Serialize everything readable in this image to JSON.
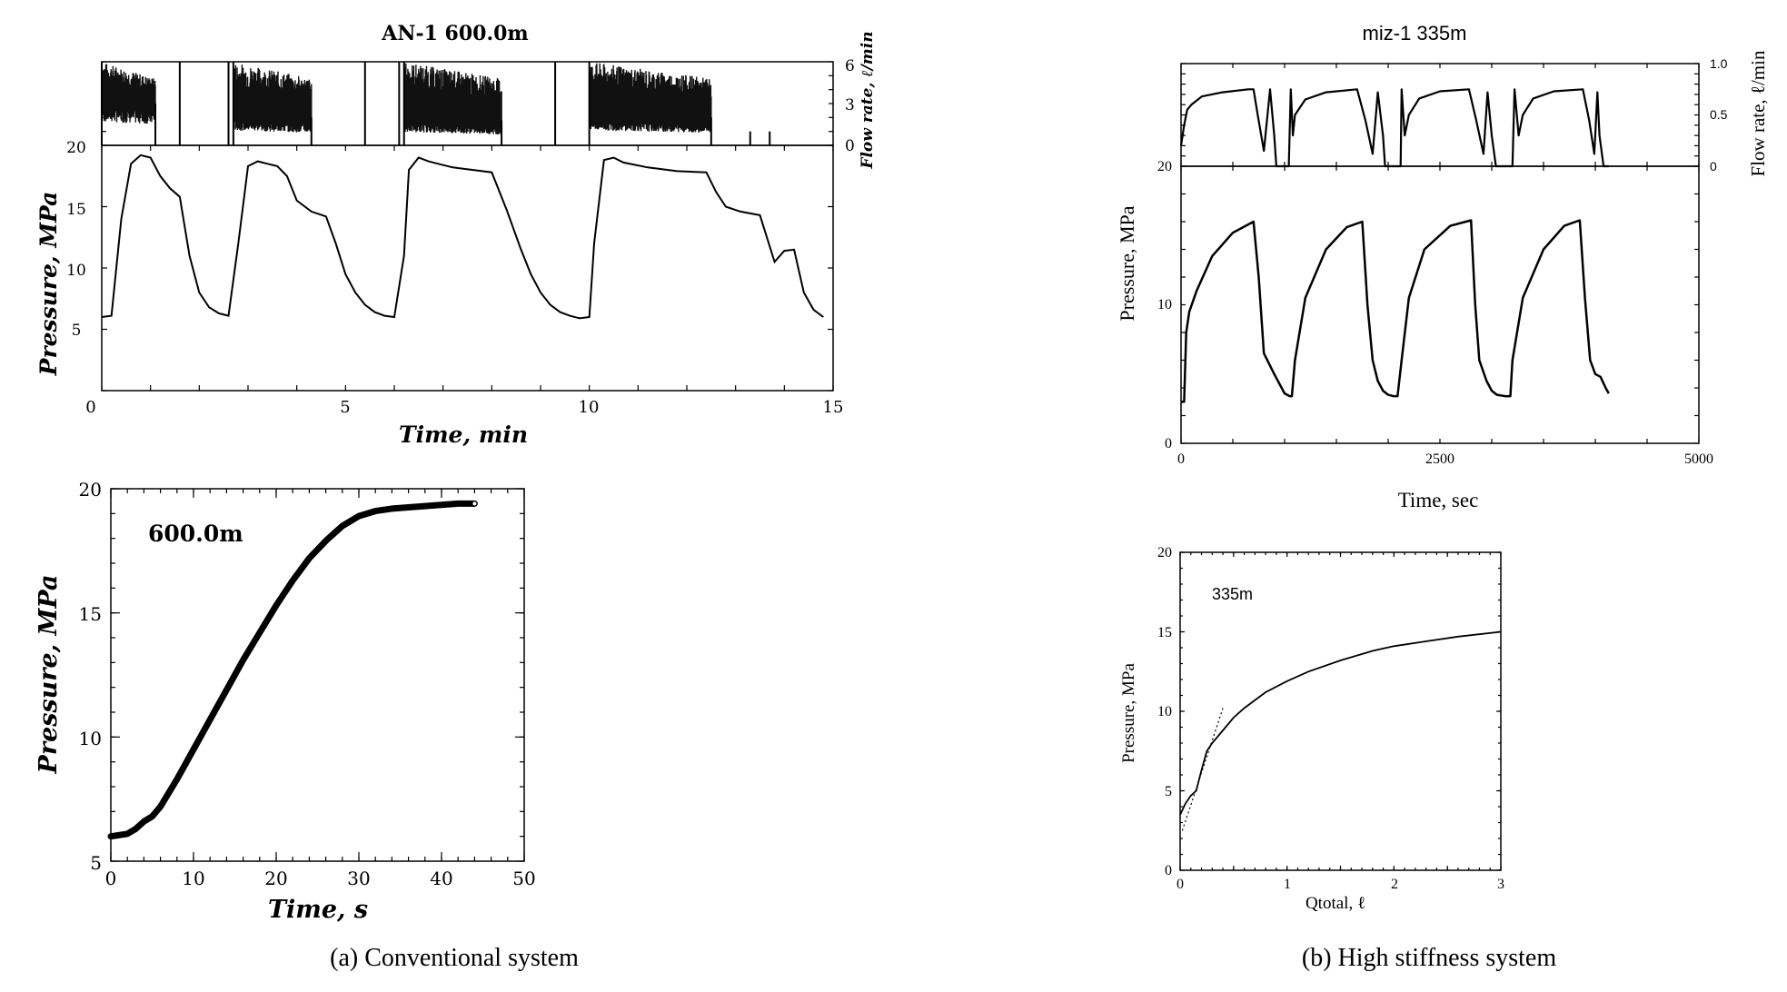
{
  "captions": {
    "left": "(a) Conventional system",
    "right": "(b) High stiffness system"
  },
  "chart_data": [
    {
      "id": "an1-cycles",
      "type": "line",
      "title": "AN-1 600.0m",
      "xlabel": "Time, min",
      "ylabel": "Pressure, MPa",
      "y2label": "Flow rate, ℓ/min",
      "xlim": [
        0,
        15
      ],
      "ylim": [
        0,
        20
      ],
      "y2lim": [
        0,
        6
      ],
      "xticks": [
        "0",
        "5",
        "10",
        "15"
      ],
      "yticks": [
        "5",
        "10",
        "15",
        "20"
      ],
      "y2ticks": [
        "0",
        "3",
        "6"
      ],
      "series": [
        {
          "x": [
            0.0,
            0.2,
            0.4,
            0.6,
            0.8,
            1.0,
            1.2,
            1.4,
            1.6,
            1.8,
            2.0,
            2.2,
            2.4,
            2.6,
            2.8,
            3.0,
            3.2,
            3.4,
            3.6,
            3.8,
            4.0,
            4.3,
            4.6,
            4.8,
            5.0,
            5.2,
            5.4,
            5.6,
            5.8,
            6.0,
            6.2,
            6.3,
            6.5,
            6.7,
            6.9,
            7.2,
            7.6,
            8.0,
            8.3,
            8.6,
            8.8,
            9.0,
            9.2,
            9.4,
            9.6,
            9.8,
            10.0,
            10.1,
            10.3,
            10.5,
            10.7,
            11.2,
            11.8,
            12.4,
            12.6,
            12.8,
            13.1,
            13.5,
            13.8,
            14.0,
            14.2,
            14.4,
            14.6,
            14.8
          ],
          "y": [
            6.0,
            6.1,
            14.0,
            18.5,
            19.2,
            19.0,
            17.5,
            16.5,
            15.8,
            11.0,
            8.0,
            6.8,
            6.3,
            6.1,
            12.0,
            18.3,
            18.7,
            18.5,
            18.3,
            17.5,
            15.5,
            14.6,
            14.2,
            12.0,
            9.5,
            8.0,
            7.0,
            6.4,
            6.1,
            6.0,
            11.0,
            18.0,
            19.0,
            18.7,
            18.5,
            18.2,
            18.0,
            17.8,
            14.8,
            11.5,
            9.5,
            8.0,
            7.0,
            6.4,
            6.1,
            5.9,
            6.0,
            12.0,
            18.8,
            19.0,
            18.6,
            18.2,
            17.9,
            17.8,
            16.2,
            15.0,
            14.6,
            14.3,
            10.5,
            11.4,
            11.5,
            8.0,
            6.6,
            6.0
          ]
        }
      ],
      "flow_bursts": [
        {
          "x0": 0.0,
          "x1": 1.1,
          "hi": 6.0,
          "lo": 2.5
        },
        {
          "x0": 2.7,
          "x1": 4.3,
          "hi": 6.0,
          "lo": 1.5
        },
        {
          "x0": 6.2,
          "x1": 8.2,
          "hi": 6.0,
          "lo": 1.3
        },
        {
          "x0": 10.0,
          "x1": 12.5,
          "hi": 6.0,
          "lo": 1.5
        }
      ],
      "flow_spikes": [
        1.6,
        2.6,
        5.4,
        6.1,
        9.3,
        13.3,
        13.7
      ]
    },
    {
      "id": "an1-ramp",
      "type": "line",
      "annotation": "600.0m",
      "xlabel": "Time, s",
      "ylabel": "Pressure, MPa",
      "xlim": [
        0,
        50
      ],
      "ylim": [
        5,
        20
      ],
      "xticks": [
        "0",
        "10",
        "20",
        "30",
        "40",
        "50"
      ],
      "yticks": [
        "5",
        "10",
        "15",
        "20"
      ],
      "series": [
        {
          "x": [
            0,
            2,
            3,
            4,
            5,
            6,
            8,
            10,
            12,
            14,
            16,
            18,
            20,
            22,
            24,
            26,
            28,
            30,
            32,
            34,
            36,
            38,
            40,
            42,
            44
          ],
          "y": [
            6.0,
            6.1,
            6.3,
            6.6,
            6.8,
            7.2,
            8.3,
            9.5,
            10.7,
            11.9,
            13.1,
            14.2,
            15.3,
            16.3,
            17.2,
            17.9,
            18.5,
            18.9,
            19.1,
            19.2,
            19.25,
            19.3,
            19.35,
            19.4,
            19.4
          ]
        }
      ]
    },
    {
      "id": "miz1-cycles",
      "type": "line",
      "title": "miz-1 335m",
      "xlabel": "Time, sec",
      "ylabel": "Pressure, MPa",
      "y2label": "Flow rate, ℓ/min",
      "xlim": [
        0,
        5000
      ],
      "ylim": [
        0,
        20
      ],
      "y2lim": [
        0,
        1.0
      ],
      "xticks": [
        "0",
        "2500",
        "5000"
      ],
      "yticks": [
        "0",
        "10",
        "20"
      ],
      "y2ticks": [
        "0",
        "0.5",
        "1.0"
      ],
      "series": [
        {
          "x": [
            0,
            30,
            50,
            80,
            150,
            300,
            500,
            700,
            750,
            800,
            900,
            1000,
            1050,
            1070,
            1100,
            1200,
            1400,
            1600,
            1750,
            1800,
            1850,
            1900,
            1950,
            2000,
            2050,
            2090,
            2130,
            2200,
            2350,
            2600,
            2800,
            2840,
            2880,
            2950,
            3000,
            3050,
            3130,
            3180,
            3200,
            3300,
            3500,
            3700,
            3850,
            3900,
            3950,
            4000,
            4050,
            4100,
            4130
          ],
          "y": [
            3.0,
            3.0,
            8.0,
            9.5,
            11.0,
            13.5,
            15.2,
            16.0,
            12.0,
            6.5,
            5.0,
            3.6,
            3.4,
            3.4,
            6.0,
            10.5,
            14.0,
            15.6,
            16.0,
            10.0,
            6.0,
            4.5,
            3.8,
            3.5,
            3.4,
            3.4,
            6.0,
            10.5,
            14.0,
            15.7,
            16.1,
            10.0,
            6.0,
            4.5,
            3.8,
            3.5,
            3.4,
            3.4,
            6.0,
            10.5,
            14.0,
            15.7,
            16.1,
            10.5,
            6.0,
            5.0,
            4.8,
            4.0,
            3.6
          ]
        }
      ],
      "flow_series": [
        {
          "x": [
            0,
            30,
            60,
            100,
            200,
            400,
            650,
            700,
            740,
            800,
            860,
            900,
            920,
            940,
            960,
            1040,
            1060,
            1080,
            1100,
            1200,
            1400,
            1700,
            1780,
            1850,
            1900,
            1950,
            1970,
            2000,
            2040,
            2120,
            2130,
            2160,
            2200,
            2300,
            2500,
            2780,
            2850,
            2920,
            2960,
            3000,
            3040,
            3080,
            3120,
            3200,
            3220,
            3260,
            3300,
            3400,
            3600,
            3880,
            3940,
            3990,
            4020,
            4040,
            4080,
            4120,
            4130
          ],
          "y": [
            0.2,
            0.4,
            0.55,
            0.6,
            0.68,
            0.72,
            0.75,
            0.75,
            0.5,
            0.15,
            0.75,
            0.3,
            0.0,
            0.0,
            0.0,
            0.0,
            0.75,
            0.3,
            0.5,
            0.65,
            0.72,
            0.75,
            0.45,
            0.12,
            0.72,
            0.3,
            0.0,
            0.0,
            0.0,
            0.0,
            0.75,
            0.3,
            0.5,
            0.66,
            0.73,
            0.75,
            0.45,
            0.12,
            0.72,
            0.3,
            0.0,
            0.0,
            0.0,
            0.0,
            0.75,
            0.3,
            0.5,
            0.66,
            0.73,
            0.75,
            0.45,
            0.12,
            0.72,
            0.3,
            0.0,
            0.0,
            0.0
          ]
        }
      ]
    },
    {
      "id": "miz1-qtotal",
      "type": "line",
      "annotation": "335m",
      "xlabel": "Qtotal, ℓ",
      "ylabel": "Pressure, MPa",
      "xlim": [
        0,
        3
      ],
      "ylim": [
        0,
        20
      ],
      "xticks": [
        "0",
        "1",
        "2",
        "3"
      ],
      "yticks": [
        "0",
        "5",
        "10",
        "15",
        "20"
      ],
      "series": [
        {
          "x": [
            0.0,
            0.05,
            0.1,
            0.15,
            0.2,
            0.25,
            0.3,
            0.4,
            0.5,
            0.6,
            0.8,
            1.0,
            1.2,
            1.5,
            1.8,
            2.0,
            2.3,
            2.6,
            3.0
          ],
          "y": [
            3.5,
            4.2,
            4.7,
            5.0,
            6.3,
            7.5,
            8.0,
            8.8,
            9.6,
            10.2,
            11.2,
            11.9,
            12.5,
            13.2,
            13.8,
            14.1,
            14.4,
            14.7,
            15.0
          ]
        },
        {
          "style": "dotted",
          "x": [
            0.02,
            0.4
          ],
          "y": [
            2.5,
            10.2
          ]
        }
      ]
    }
  ]
}
